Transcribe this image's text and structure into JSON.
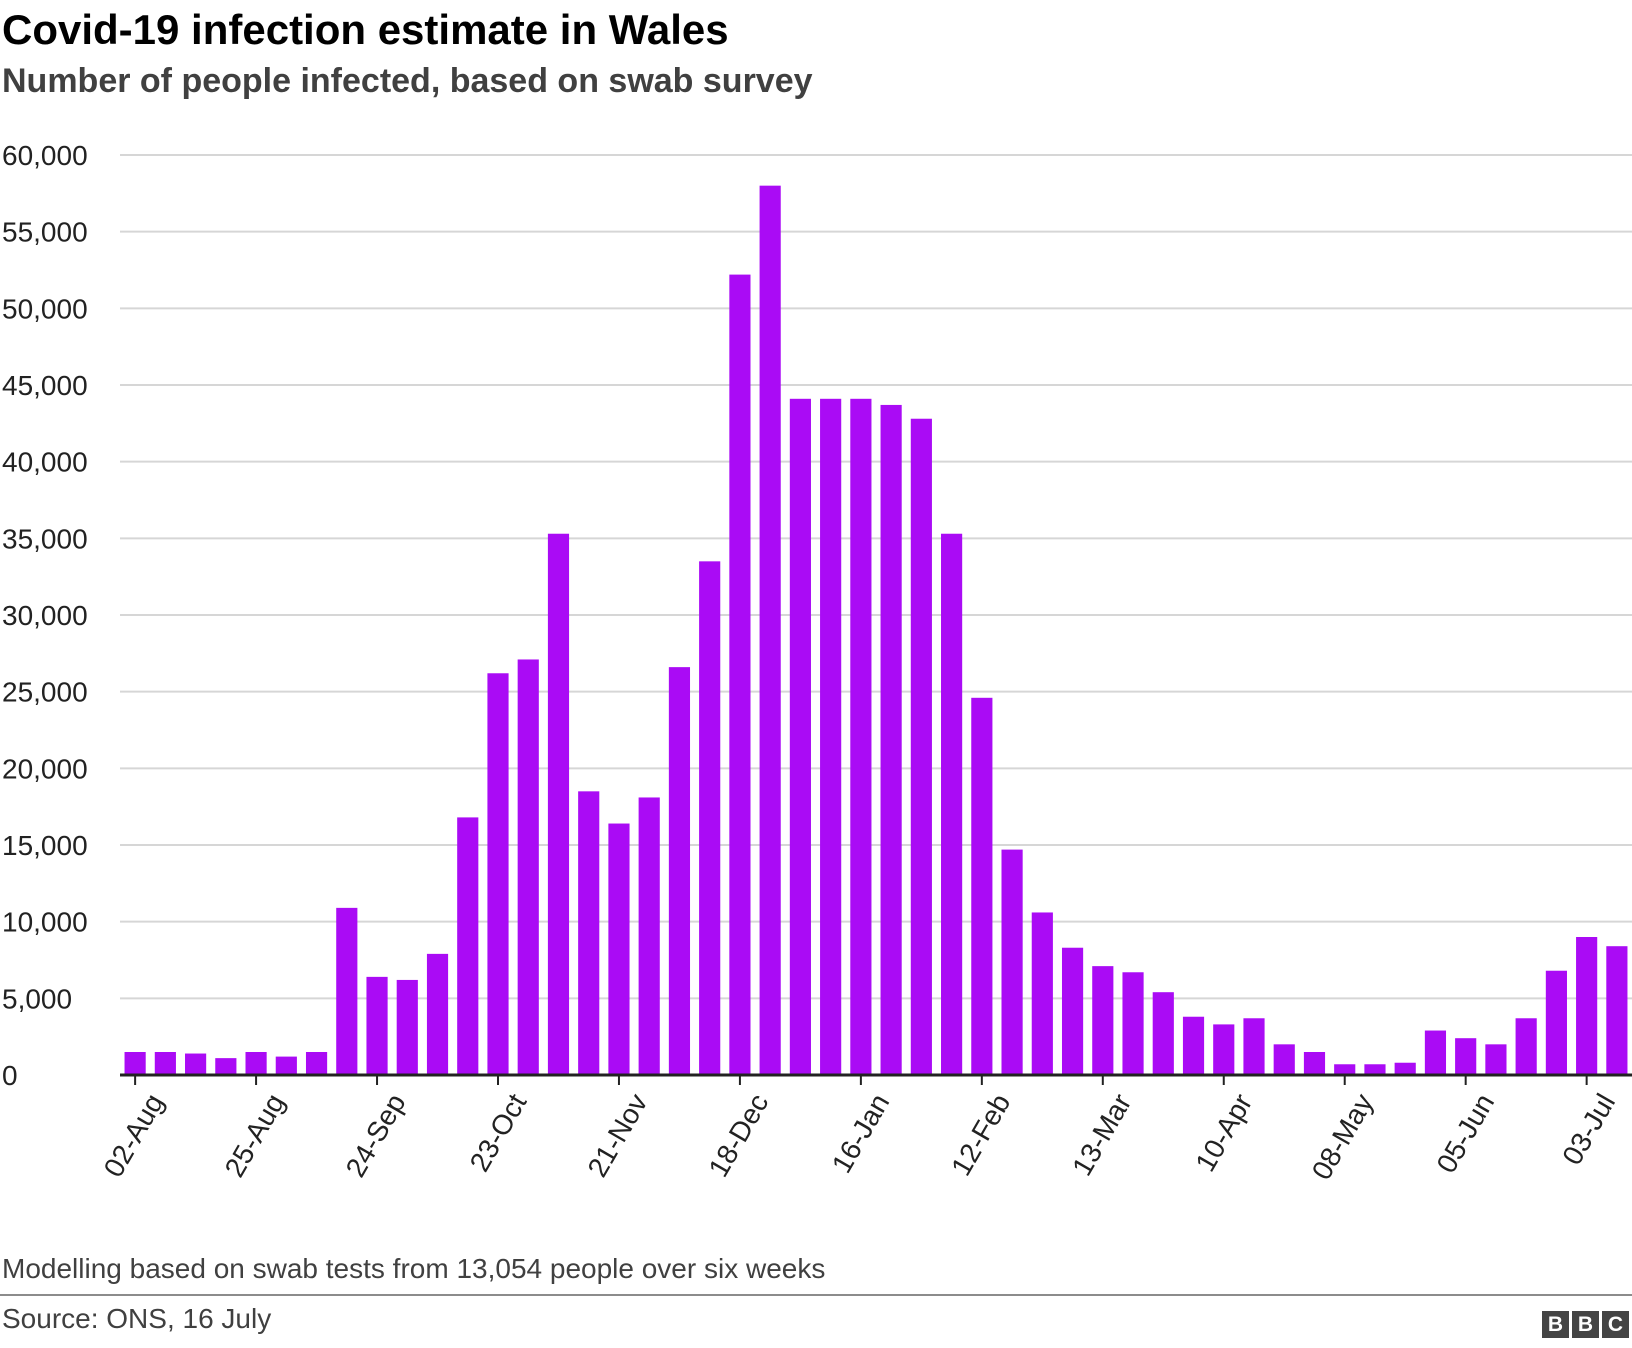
{
  "header": {
    "title": "Covid-19 infection estimate in Wales",
    "subtitle": "Number of people infected, based on swab survey"
  },
  "footer": {
    "note": "Modelling based on swab tests from 13,054 people over six weeks",
    "source": "Source: ONS, 16 July",
    "logo_letters": [
      "B",
      "B",
      "C"
    ]
  },
  "colors": {
    "bar": "#aa0bf5",
    "grid": "#d6d6d6",
    "axis": "#222222"
  },
  "chart_data": {
    "type": "bar",
    "title": "Covid-19 infection estimate in Wales",
    "subtitle": "Number of people infected, based on swab survey",
    "xlabel": "",
    "ylabel": "",
    "ylim": [
      0,
      60000
    ],
    "yticks": [
      0,
      5000,
      10000,
      15000,
      20000,
      25000,
      30000,
      35000,
      40000,
      45000,
      50000,
      55000,
      60000
    ],
    "ytick_labels": [
      "0",
      "5,000",
      "10,000",
      "15,000",
      "20,000",
      "25,000",
      "30,000",
      "35,000",
      "40,000",
      "45,000",
      "50,000",
      "55,000",
      "60,000"
    ],
    "grid": true,
    "xtick_labels": [
      {
        "index": 0,
        "label": "02-Aug"
      },
      {
        "index": 4,
        "label": "25-Aug"
      },
      {
        "index": 8,
        "label": "24-Sep"
      },
      {
        "index": 12,
        "label": "23-Oct"
      },
      {
        "index": 16,
        "label": "21-Nov"
      },
      {
        "index": 20,
        "label": "18-Dec"
      },
      {
        "index": 24,
        "label": "16-Jan"
      },
      {
        "index": 28,
        "label": "12-Feb"
      },
      {
        "index": 32,
        "label": "13-Mar"
      },
      {
        "index": 36,
        "label": "10-Apr"
      },
      {
        "index": 40,
        "label": "08-May"
      },
      {
        "index": 44,
        "label": "05-Jun"
      },
      {
        "index": 48,
        "label": "03-Jul"
      }
    ],
    "values": [
      1500,
      1500,
      1400,
      1100,
      1500,
      1200,
      1500,
      10900,
      6400,
      6200,
      7900,
      16800,
      26200,
      27100,
      35300,
      18500,
      16400,
      18100,
      26600,
      33500,
      52200,
      58000,
      44100,
      44100,
      44100,
      43700,
      42800,
      35300,
      24600,
      14700,
      10600,
      8300,
      7100,
      6700,
      5400,
      3800,
      3300,
      3700,
      2000,
      1500,
      700,
      700,
      800,
      2900,
      2400,
      2000,
      3700,
      6800,
      9000,
      8400
    ]
  }
}
